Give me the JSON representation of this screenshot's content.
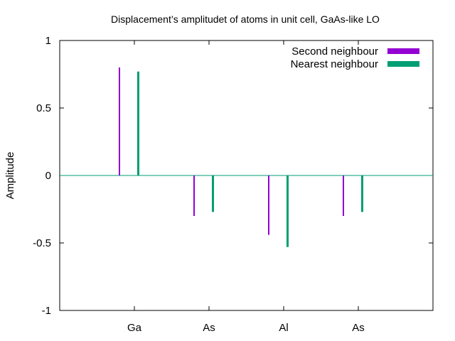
{
  "chart_data": {
    "type": "bar",
    "title": "Displacement’s amplitudet of atoms in unit cell, GaAs-like LO",
    "xlabel": "",
    "ylabel": "Amplitude",
    "categories": [
      "Ga",
      "As",
      "Al",
      "As"
    ],
    "ylim": [
      -1,
      1
    ],
    "yticks": [
      {
        "value": 1,
        "label": "1"
      },
      {
        "value": 0.5,
        "label": "0.5"
      },
      {
        "value": 0,
        "label": "0"
      },
      {
        "value": -0.5,
        "label": "-0.5"
      },
      {
        "value": -1,
        "label": "-1"
      }
    ],
    "zero_line": true,
    "grid": false,
    "legend_position": "top-right",
    "series": [
      {
        "name": "Second neighbour",
        "color": "#9400d3",
        "values": [
          0.8,
          -0.3,
          -0.44,
          -0.3
        ]
      },
      {
        "name": "Nearest neighbour",
        "color": "#009e73",
        "values": [
          0.77,
          -0.27,
          -0.53,
          -0.27
        ]
      }
    ]
  }
}
